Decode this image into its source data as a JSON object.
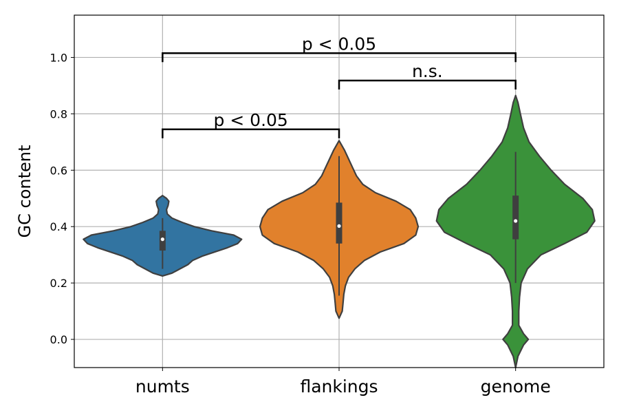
{
  "chart_data": {
    "type": "violin",
    "title": "",
    "xlabel": "",
    "ylabel": "GC content",
    "ylim": [
      -0.1,
      1.15
    ],
    "yticks": [
      0.0,
      0.2,
      0.4,
      0.6,
      0.8,
      1.0
    ],
    "ytick_labels": [
      "0.0",
      "0.2",
      "0.4",
      "0.6",
      "0.8",
      "1.0"
    ],
    "grid": true,
    "categories": [
      "numts",
      "flankings",
      "genome"
    ],
    "series": [
      {
        "category": "numts",
        "color": "#3274a1",
        "min": 0.225,
        "max": 0.51,
        "median": 0.355,
        "q1": 0.315,
        "q3": 0.385,
        "whisker_low": 0.25,
        "whisker_high": 0.43,
        "density": [
          [
            0.225,
            0.0
          ],
          [
            0.235,
            0.12
          ],
          [
            0.25,
            0.22
          ],
          [
            0.265,
            0.32
          ],
          [
            0.28,
            0.38
          ],
          [
            0.295,
            0.5
          ],
          [
            0.31,
            0.66
          ],
          [
            0.325,
            0.82
          ],
          [
            0.34,
            0.95
          ],
          [
            0.355,
            1.0
          ],
          [
            0.37,
            0.9
          ],
          [
            0.385,
            0.62
          ],
          [
            0.4,
            0.4
          ],
          [
            0.415,
            0.25
          ],
          [
            0.43,
            0.12
          ],
          [
            0.445,
            0.06
          ],
          [
            0.46,
            0.05
          ],
          [
            0.475,
            0.07
          ],
          [
            0.49,
            0.08
          ],
          [
            0.5,
            0.05
          ],
          [
            0.51,
            0.0
          ]
        ]
      },
      {
        "category": "flankings",
        "color": "#e1812c",
        "min": 0.075,
        "max": 0.705,
        "median": 0.402,
        "q1": 0.34,
        "q3": 0.485,
        "whisker_low": 0.155,
        "whisker_high": 0.65,
        "density": [
          [
            0.075,
            0.0
          ],
          [
            0.1,
            0.04
          ],
          [
            0.13,
            0.05
          ],
          [
            0.16,
            0.06
          ],
          [
            0.19,
            0.08
          ],
          [
            0.22,
            0.12
          ],
          [
            0.25,
            0.2
          ],
          [
            0.28,
            0.32
          ],
          [
            0.31,
            0.52
          ],
          [
            0.34,
            0.82
          ],
          [
            0.37,
            0.97
          ],
          [
            0.4,
            1.0
          ],
          [
            0.43,
            0.97
          ],
          [
            0.46,
            0.9
          ],
          [
            0.49,
            0.72
          ],
          [
            0.52,
            0.46
          ],
          [
            0.55,
            0.3
          ],
          [
            0.58,
            0.22
          ],
          [
            0.61,
            0.17
          ],
          [
            0.64,
            0.12
          ],
          [
            0.67,
            0.07
          ],
          [
            0.705,
            0.0
          ]
        ]
      },
      {
        "category": "genome",
        "color": "#3a923a",
        "min": -0.1,
        "max": 0.865,
        "median": 0.42,
        "q1": 0.355,
        "q3": 0.51,
        "whisker_low": 0.2,
        "whisker_high": 0.665,
        "density": [
          [
            -0.1,
            0.0
          ],
          [
            -0.06,
            0.03
          ],
          [
            -0.02,
            0.1
          ],
          [
            0.0,
            0.16
          ],
          [
            0.02,
            0.1
          ],
          [
            0.05,
            0.04
          ],
          [
            0.1,
            0.04
          ],
          [
            0.15,
            0.05
          ],
          [
            0.2,
            0.07
          ],
          [
            0.25,
            0.15
          ],
          [
            0.3,
            0.32
          ],
          [
            0.34,
            0.62
          ],
          [
            0.38,
            0.9
          ],
          [
            0.42,
            1.0
          ],
          [
            0.46,
            0.97
          ],
          [
            0.5,
            0.85
          ],
          [
            0.55,
            0.62
          ],
          [
            0.6,
            0.45
          ],
          [
            0.65,
            0.3
          ],
          [
            0.7,
            0.17
          ],
          [
            0.75,
            0.1
          ],
          [
            0.8,
            0.06
          ],
          [
            0.84,
            0.03
          ],
          [
            0.865,
            0.0
          ]
        ]
      }
    ],
    "annotations": [
      {
        "from": "numts",
        "to": "flankings",
        "y": 0.745,
        "label": "p < 0.05"
      },
      {
        "from": "flankings",
        "to": "genome",
        "y": 0.918,
        "label": "n.s."
      },
      {
        "from": "numts",
        "to": "genome",
        "y": 1.015,
        "label": "p < 0.05"
      }
    ]
  }
}
